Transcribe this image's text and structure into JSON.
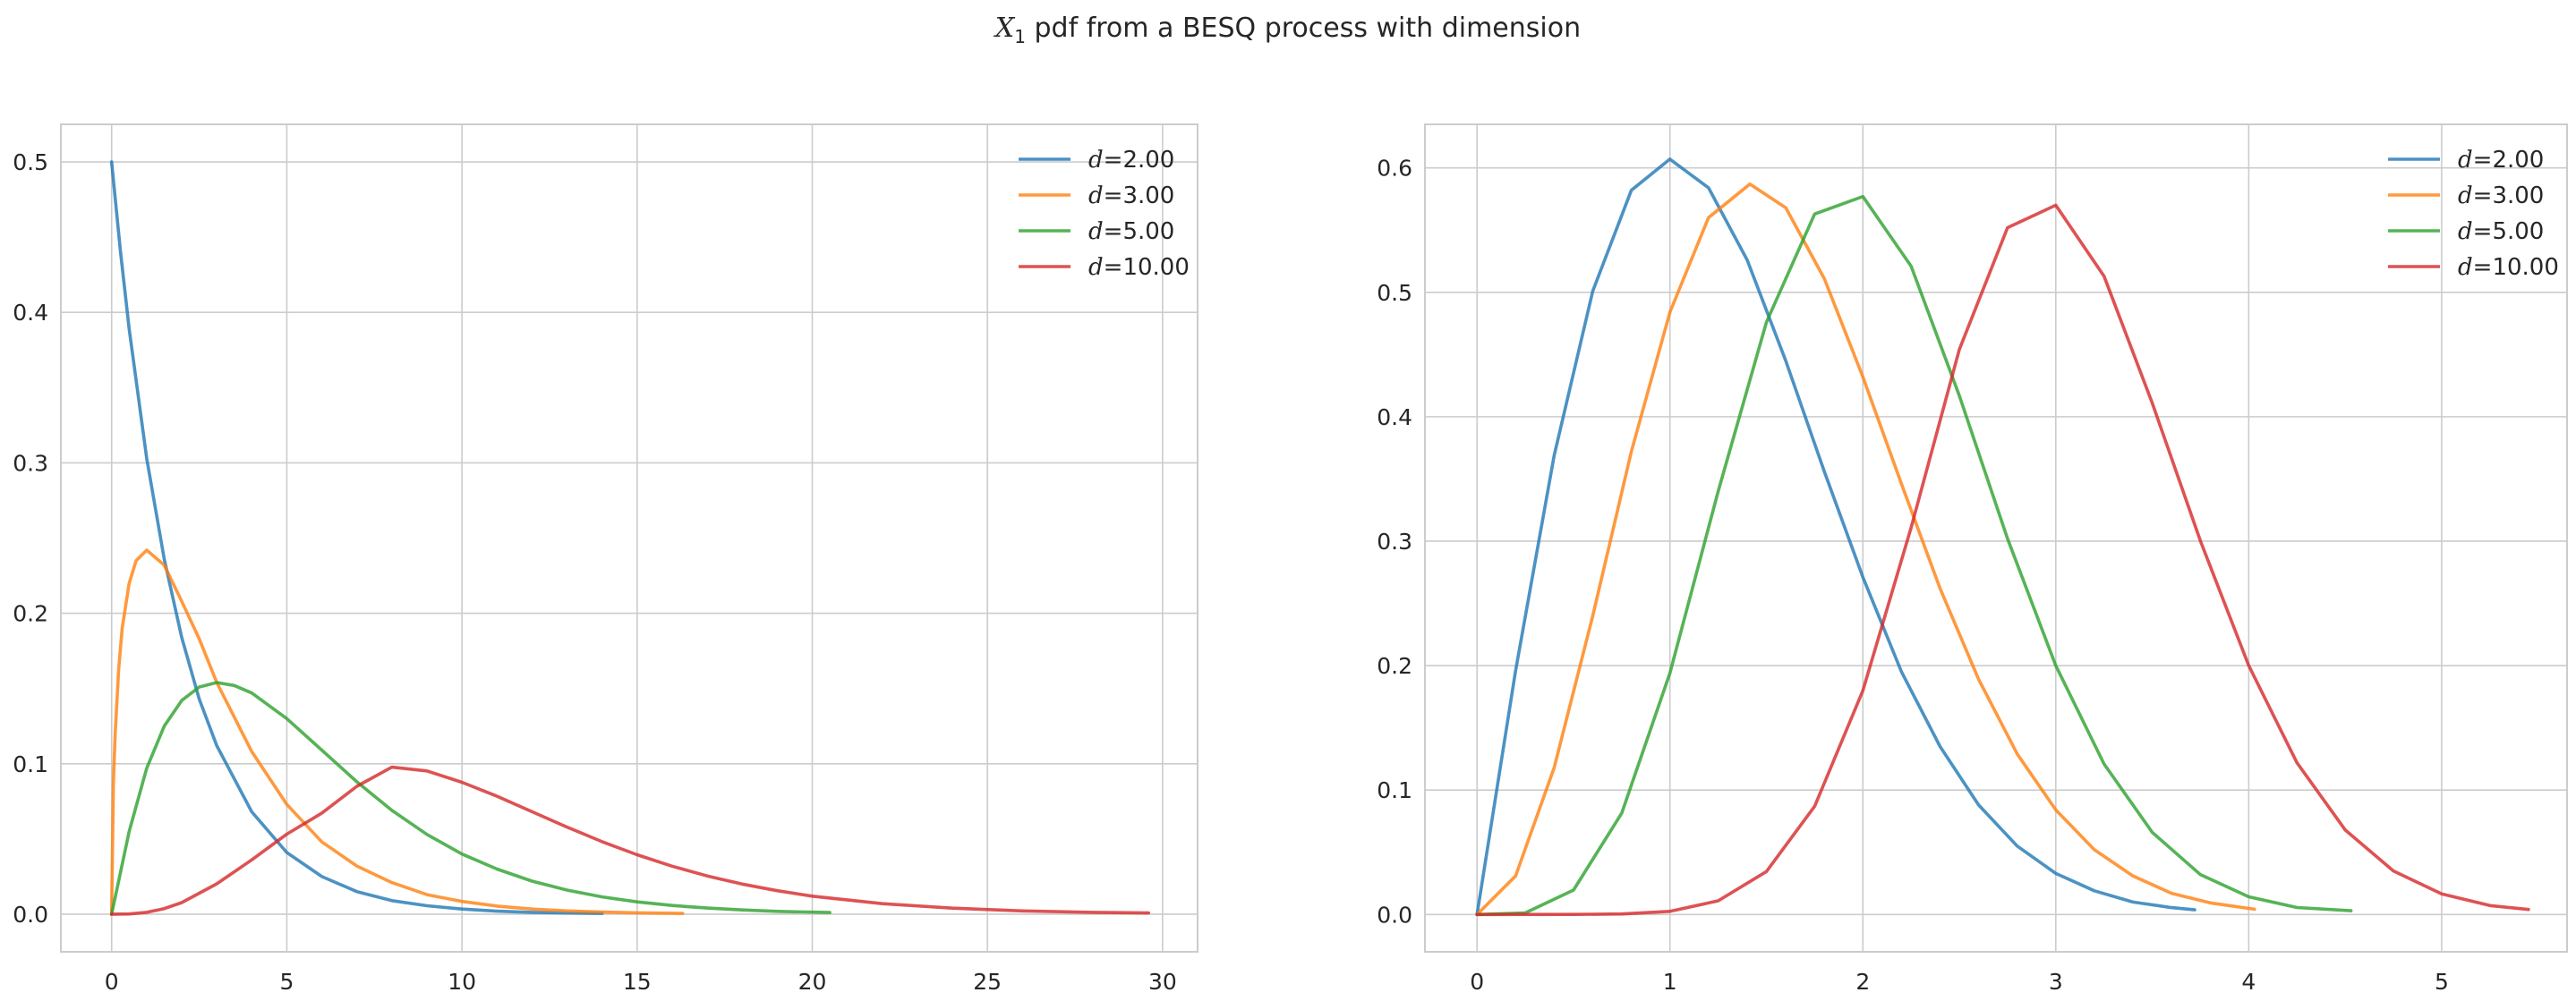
{
  "figure": {
    "title_var": "X",
    "title_sub": "1",
    "title_rest": " pdf from a BESQ process with dimension"
  },
  "colors": {
    "series": [
      "#1f77b4",
      "#ff7f0e",
      "#2ca02c",
      "#d62728"
    ],
    "grid": "#cccccc",
    "spine": "#cccccc",
    "text": "#262626"
  },
  "chart_data": [
    {
      "type": "line",
      "title": "",
      "xlabel": "",
      "ylabel": "",
      "xlim": [
        -1.45,
        31.0
      ],
      "ylim": [
        -0.025,
        0.525
      ],
      "xticks": [
        0,
        5,
        10,
        15,
        20,
        25,
        30
      ],
      "yticks": [
        0.0,
        0.1,
        0.2,
        0.3,
        0.4,
        0.5
      ],
      "grid": true,
      "legend": "top-right",
      "series": [
        {
          "name": "d=2.00",
          "x": [
            0,
            0.25,
            0.5,
            1,
            1.5,
            2,
            2.5,
            3,
            4,
            5,
            6,
            7,
            8,
            9,
            10,
            11,
            12,
            13,
            14
          ],
          "y": [
            0.5,
            0.441,
            0.389,
            0.303,
            0.236,
            0.184,
            0.143,
            0.112,
            0.068,
            0.041,
            0.025,
            0.015,
            0.009,
            0.0056,
            0.0034,
            0.002,
            0.0012,
            0.0008,
            0.0005
          ]
        },
        {
          "name": "d=3.00",
          "x": [
            0,
            0.05,
            0.1,
            0.2,
            0.3,
            0.5,
            0.7,
            1,
            1.5,
            2,
            2.5,
            3,
            4,
            5,
            6,
            7,
            8,
            9,
            10,
            11,
            12,
            13,
            14,
            15,
            16.3
          ],
          "y": [
            0,
            0.087,
            0.12,
            0.163,
            0.19,
            0.22,
            0.235,
            0.242,
            0.232,
            0.208,
            0.183,
            0.154,
            0.108,
            0.073,
            0.048,
            0.032,
            0.021,
            0.013,
            0.0085,
            0.0054,
            0.0034,
            0.0022,
            0.0014,
            0.0009,
            0.0005
          ]
        },
        {
          "name": "d=5.00",
          "x": [
            0,
            0.5,
            1,
            1.5,
            2,
            2.5,
            3,
            3.5,
            4,
            5,
            6,
            7,
            8,
            9,
            10,
            11,
            12,
            13,
            14,
            15,
            16,
            17,
            18,
            19,
            20.5
          ],
          "y": [
            0,
            0.055,
            0.097,
            0.125,
            0.142,
            0.151,
            0.154,
            0.152,
            0.147,
            0.13,
            0.109,
            0.088,
            0.069,
            0.053,
            0.04,
            0.03,
            0.022,
            0.016,
            0.0115,
            0.0082,
            0.0058,
            0.0041,
            0.0028,
            0.0019,
            0.0011
          ]
        },
        {
          "name": "d=10.00",
          "x": [
            0,
            0.5,
            1,
            1.5,
            2,
            3,
            4,
            5,
            6,
            7,
            8,
            9,
            10,
            11,
            12,
            13,
            14,
            15,
            16,
            17,
            18,
            19,
            20,
            22,
            24,
            26,
            28,
            29.6
          ],
          "y": [
            0,
            0.00015,
            0.0012,
            0.0037,
            0.0077,
            0.0202,
            0.0361,
            0.0532,
            0.0672,
            0.085,
            0.0977,
            0.0952,
            0.0877,
            0.0784,
            0.0681,
            0.0579,
            0.0482,
            0.0395,
            0.0319,
            0.0254,
            0.02,
            0.0156,
            0.012,
            0.007,
            0.004,
            0.0022,
            0.0012,
            0.0008
          ]
        }
      ]
    },
    {
      "type": "line",
      "title": "",
      "xlabel": "",
      "ylabel": "",
      "xlim": [
        -0.27,
        5.65
      ],
      "ylim": [
        -0.03,
        0.635
      ],
      "xticks": [
        0,
        1,
        2,
        3,
        4,
        5
      ],
      "yticks": [
        0.0,
        0.1,
        0.2,
        0.3,
        0.4,
        0.5,
        0.6
      ],
      "grid": true,
      "legend": "top-right",
      "series": [
        {
          "name": "d=2.00",
          "x": [
            0,
            0.2,
            0.4,
            0.6,
            0.8,
            1.0,
            1.2,
            1.4,
            1.6,
            1.8,
            2.0,
            2.2,
            2.4,
            2.6,
            2.8,
            3.0,
            3.2,
            3.4,
            3.6,
            3.72
          ],
          "y": [
            0,
            0.196,
            0.369,
            0.501,
            0.582,
            0.607,
            0.584,
            0.526,
            0.445,
            0.356,
            0.271,
            0.195,
            0.135,
            0.088,
            0.055,
            0.033,
            0.019,
            0.01,
            0.0055,
            0.0037
          ]
        },
        {
          "name": "d=3.00",
          "x": [
            0,
            0.2,
            0.4,
            0.6,
            0.8,
            1.0,
            1.2,
            1.414,
            1.6,
            1.8,
            2.0,
            2.2,
            2.4,
            2.6,
            2.8,
            3.0,
            3.2,
            3.4,
            3.6,
            3.8,
            4.03
          ],
          "y": [
            0,
            0.031,
            0.118,
            0.24,
            0.372,
            0.484,
            0.56,
            0.587,
            0.568,
            0.511,
            0.432,
            0.346,
            0.262,
            0.189,
            0.129,
            0.084,
            0.052,
            0.031,
            0.017,
            0.0093,
            0.0042
          ]
        },
        {
          "name": "d=5.00",
          "x": [
            0,
            0.25,
            0.5,
            0.75,
            1.0,
            1.25,
            1.5,
            1.75,
            2.0,
            2.25,
            2.5,
            2.75,
            3.0,
            3.25,
            3.5,
            3.75,
            4.0,
            4.25,
            4.53
          ],
          "y": [
            0,
            0.0013,
            0.0196,
            0.0815,
            0.194,
            0.34,
            0.476,
            0.563,
            0.577,
            0.521,
            0.417,
            0.302,
            0.2,
            0.121,
            0.066,
            0.032,
            0.0142,
            0.0056,
            0.003
          ]
        },
        {
          "name": "d=10.00",
          "x": [
            0,
            0.5,
            0.75,
            1.0,
            1.25,
            1.5,
            1.75,
            2.0,
            2.25,
            2.5,
            2.75,
            3.0,
            3.25,
            3.5,
            3.75,
            4.0,
            4.25,
            4.5,
            4.75,
            5.0,
            5.25,
            5.45
          ],
          "y": [
            0,
            3e-05,
            0.0004,
            0.0025,
            0.011,
            0.0345,
            0.087,
            0.18,
            0.311,
            0.454,
            0.552,
            0.57,
            0.513,
            0.411,
            0.3,
            0.2,
            0.122,
            0.068,
            0.035,
            0.0165,
            0.0072,
            0.004
          ]
        }
      ]
    }
  ]
}
